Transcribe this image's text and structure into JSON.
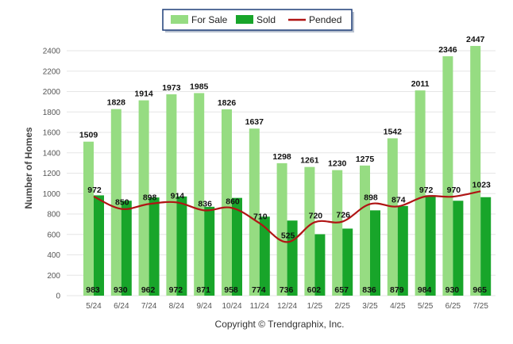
{
  "chart_data": {
    "type": "bar",
    "categories": [
      "5/24",
      "6/24",
      "7/24",
      "8/24",
      "9/24",
      "10/24",
      "11/24",
      "12/24",
      "1/25",
      "2/25",
      "3/25",
      "4/25",
      "5/25",
      "6/25",
      "7/25"
    ],
    "series": [
      {
        "name": "For Sale",
        "kind": "bar",
        "color": "#96dc82",
        "values": [
          1509,
          1828,
          1914,
          1973,
          1985,
          1826,
          1637,
          1298,
          1261,
          1230,
          1275,
          1542,
          2011,
          2346,
          2447
        ]
      },
      {
        "name": "Sold",
        "kind": "bar",
        "color": "#18a52a",
        "values": [
          983,
          930,
          962,
          972,
          871,
          958,
          774,
          736,
          602,
          657,
          836,
          879,
          984,
          930,
          965
        ]
      },
      {
        "name": "Pended",
        "kind": "line",
        "color": "#b01414",
        "values": [
          972,
          850,
          898,
          914,
          836,
          860,
          710,
          525,
          720,
          726,
          898,
          874,
          972,
          970,
          1023
        ]
      }
    ],
    "ylabel": "Number of Homes",
    "xlabel": "",
    "ylim": [
      0,
      2400
    ],
    "yticks": [
      0,
      200,
      400,
      600,
      800,
      1000,
      1200,
      1400,
      1600,
      1800,
      2000,
      2200,
      2400
    ],
    "grid": true,
    "legend_position": "top-center",
    "caption": "Copyright © Trendgraphix, Inc."
  }
}
